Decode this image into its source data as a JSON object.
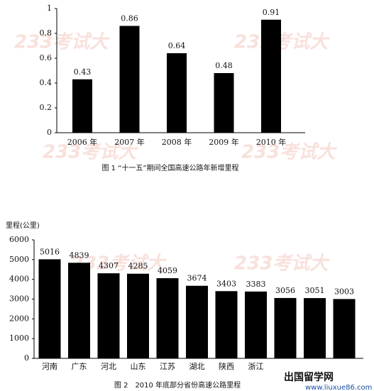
{
  "chart_data": [
    {
      "type": "bar",
      "caption": "图 1 “十一五”期间全国高速公路年新增里程",
      "categories": [
        "2006 年",
        "2007 年",
        "2008 年",
        "2009 年",
        "2010 年"
      ],
      "values": [
        0.43,
        0.86,
        0.64,
        0.48,
        0.91
      ],
      "color": "#000000",
      "ylim": [
        0,
        1
      ],
      "yticks": [
        0,
        0.2,
        0.4,
        0.6,
        0.8,
        1
      ],
      "grid": false
    },
    {
      "type": "bar",
      "caption": "图 2　2010 年底部分省份高速公路里程",
      "y_label": "里程(公里)",
      "categories": [
        "河南",
        "广东",
        "河北",
        "山东",
        "江苏",
        "湖北",
        "陕西",
        "浙江",
        null,
        null,
        null
      ],
      "values": [
        5016,
        4839,
        4307,
        4285,
        4059,
        3674,
        3403,
        3383,
        3056,
        3051,
        3003
      ],
      "color": "#000000",
      "ylim": [
        0,
        6000
      ],
      "yticks": [
        0,
        1000,
        2000,
        3000,
        4000,
        5000,
        6000
      ],
      "grid": false
    }
  ],
  "watermark": "233考试大",
  "footer": {
    "brand": "出国留学网",
    "url": "www.liuxue86.com"
  }
}
